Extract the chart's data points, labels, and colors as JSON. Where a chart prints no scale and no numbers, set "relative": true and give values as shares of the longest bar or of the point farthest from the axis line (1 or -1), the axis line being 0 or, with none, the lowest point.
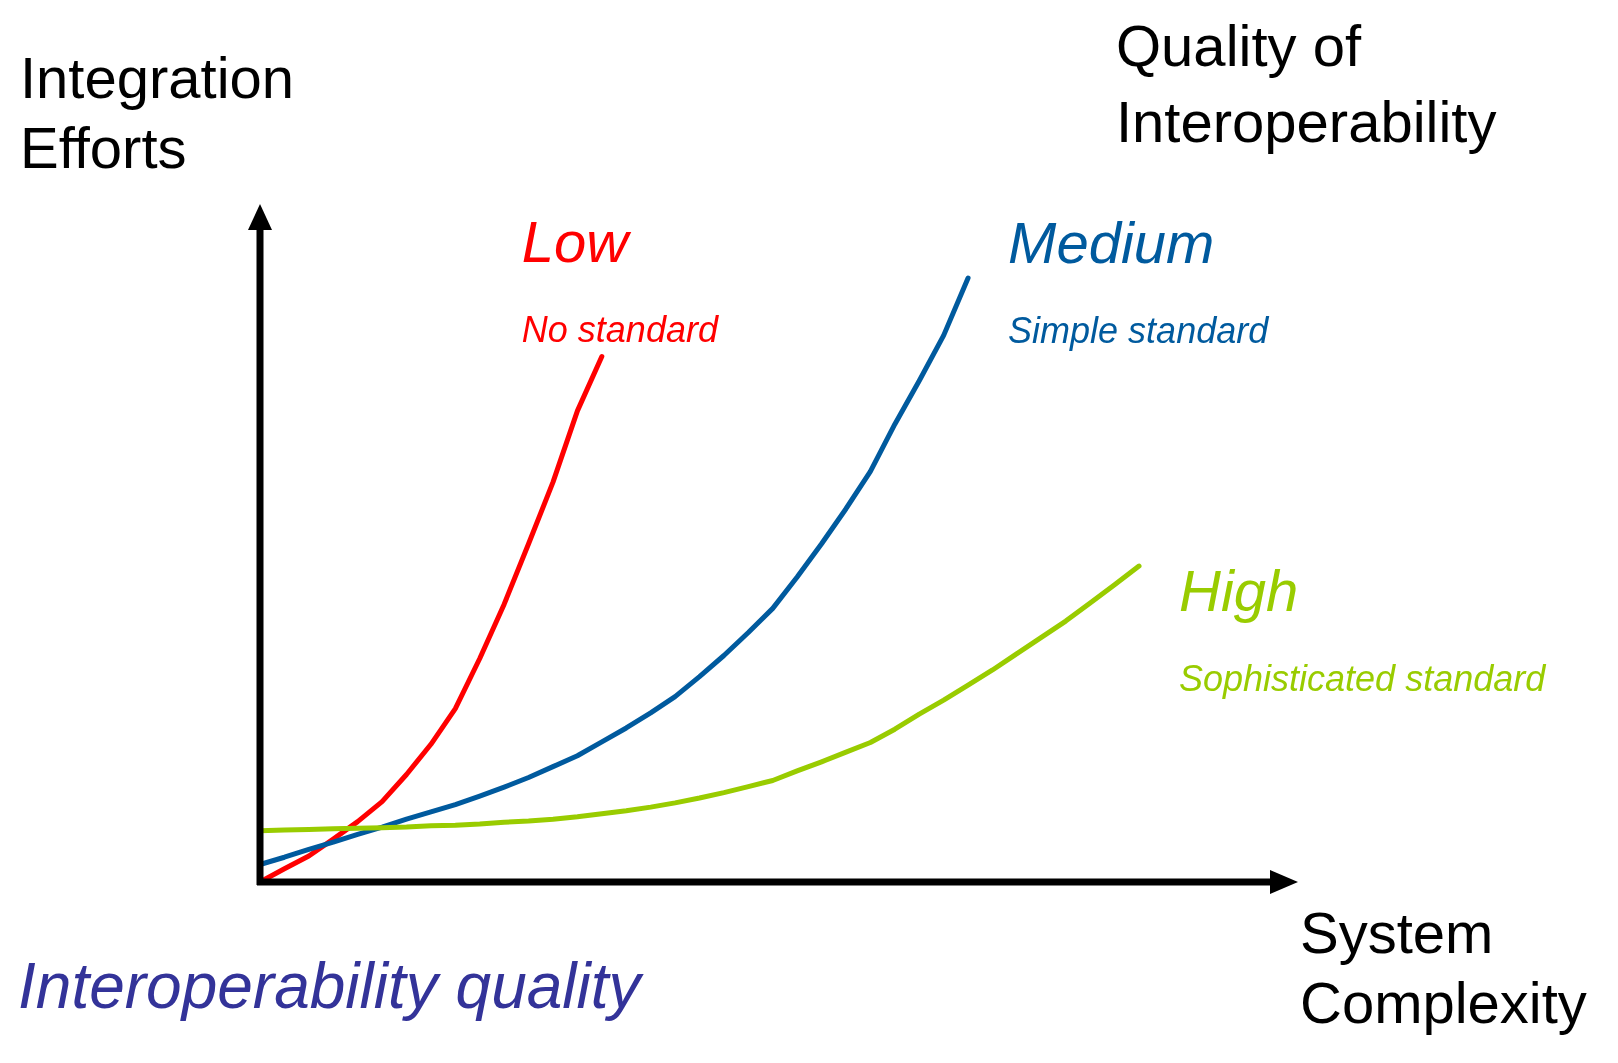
{
  "chart_data": {
    "type": "line",
    "relative": true,
    "line_style": "solid",
    "ylabel": "Integration Efforts",
    "xlabel": "System Complexity",
    "legend_title": "Quality of Interoperability",
    "categories": [
      null,
      null,
      null,
      null,
      null,
      null,
      null,
      null,
      null,
      null,
      null,
      null,
      null,
      null,
      null,
      null,
      null,
      null,
      null,
      null,
      null,
      null,
      null,
      null,
      null,
      null,
      null,
      null,
      null,
      null,
      null,
      null,
      null,
      null,
      null,
      null,
      null
    ],
    "series": [
      {
        "name": "Low",
        "color": "#ff0000",
        "values": [
          0,
          0.022,
          0.043,
          0.071,
          0.1,
          0.133,
          0.178,
          0.228,
          0.287,
          0.37,
          0.46,
          0.56,
          0.662,
          0.78,
          0.87,
          null,
          null,
          null,
          null,
          null,
          null,
          null,
          null,
          null,
          null,
          null,
          null,
          null,
          null,
          null,
          null,
          null,
          null,
          null,
          null,
          null,
          null
        ]
      },
      {
        "name": "Medium",
        "color": "#005a9e",
        "values": [
          0.029,
          0.041,
          0.054,
          0.066,
          0.079,
          0.091,
          0.104,
          0.116,
          0.128,
          0.142,
          0.157,
          0.173,
          0.191,
          0.209,
          0.232,
          0.255,
          0.28,
          0.307,
          0.34,
          0.375,
          0.413,
          0.453,
          0.505,
          0.56,
          0.618,
          0.68,
          0.758,
          0.83,
          0.905,
          1,
          null,
          null,
          null,
          null,
          null,
          null,
          null
        ]
      },
      {
        "name": "High",
        "color": "#99cc00",
        "values": [
          0.085,
          0.086,
          0.087,
          0.088,
          0.089,
          0.09,
          0.091,
          0.093,
          0.094,
          0.096,
          0.099,
          0.101,
          0.104,
          0.108,
          0.113,
          0.118,
          0.124,
          0.131,
          0.139,
          0.148,
          0.158,
          0.168,
          0.184,
          0.199,
          0.215,
          0.231,
          0.253,
          0.278,
          0.301,
          0.326,
          0.351,
          0.378,
          0.405,
          0.432,
          0.462,
          0.492,
          0.523
        ]
      }
    ],
    "annotations": [
      "No standard",
      "Simple standard",
      "Sophisticated standard",
      "Interoperability quality"
    ]
  }
}
